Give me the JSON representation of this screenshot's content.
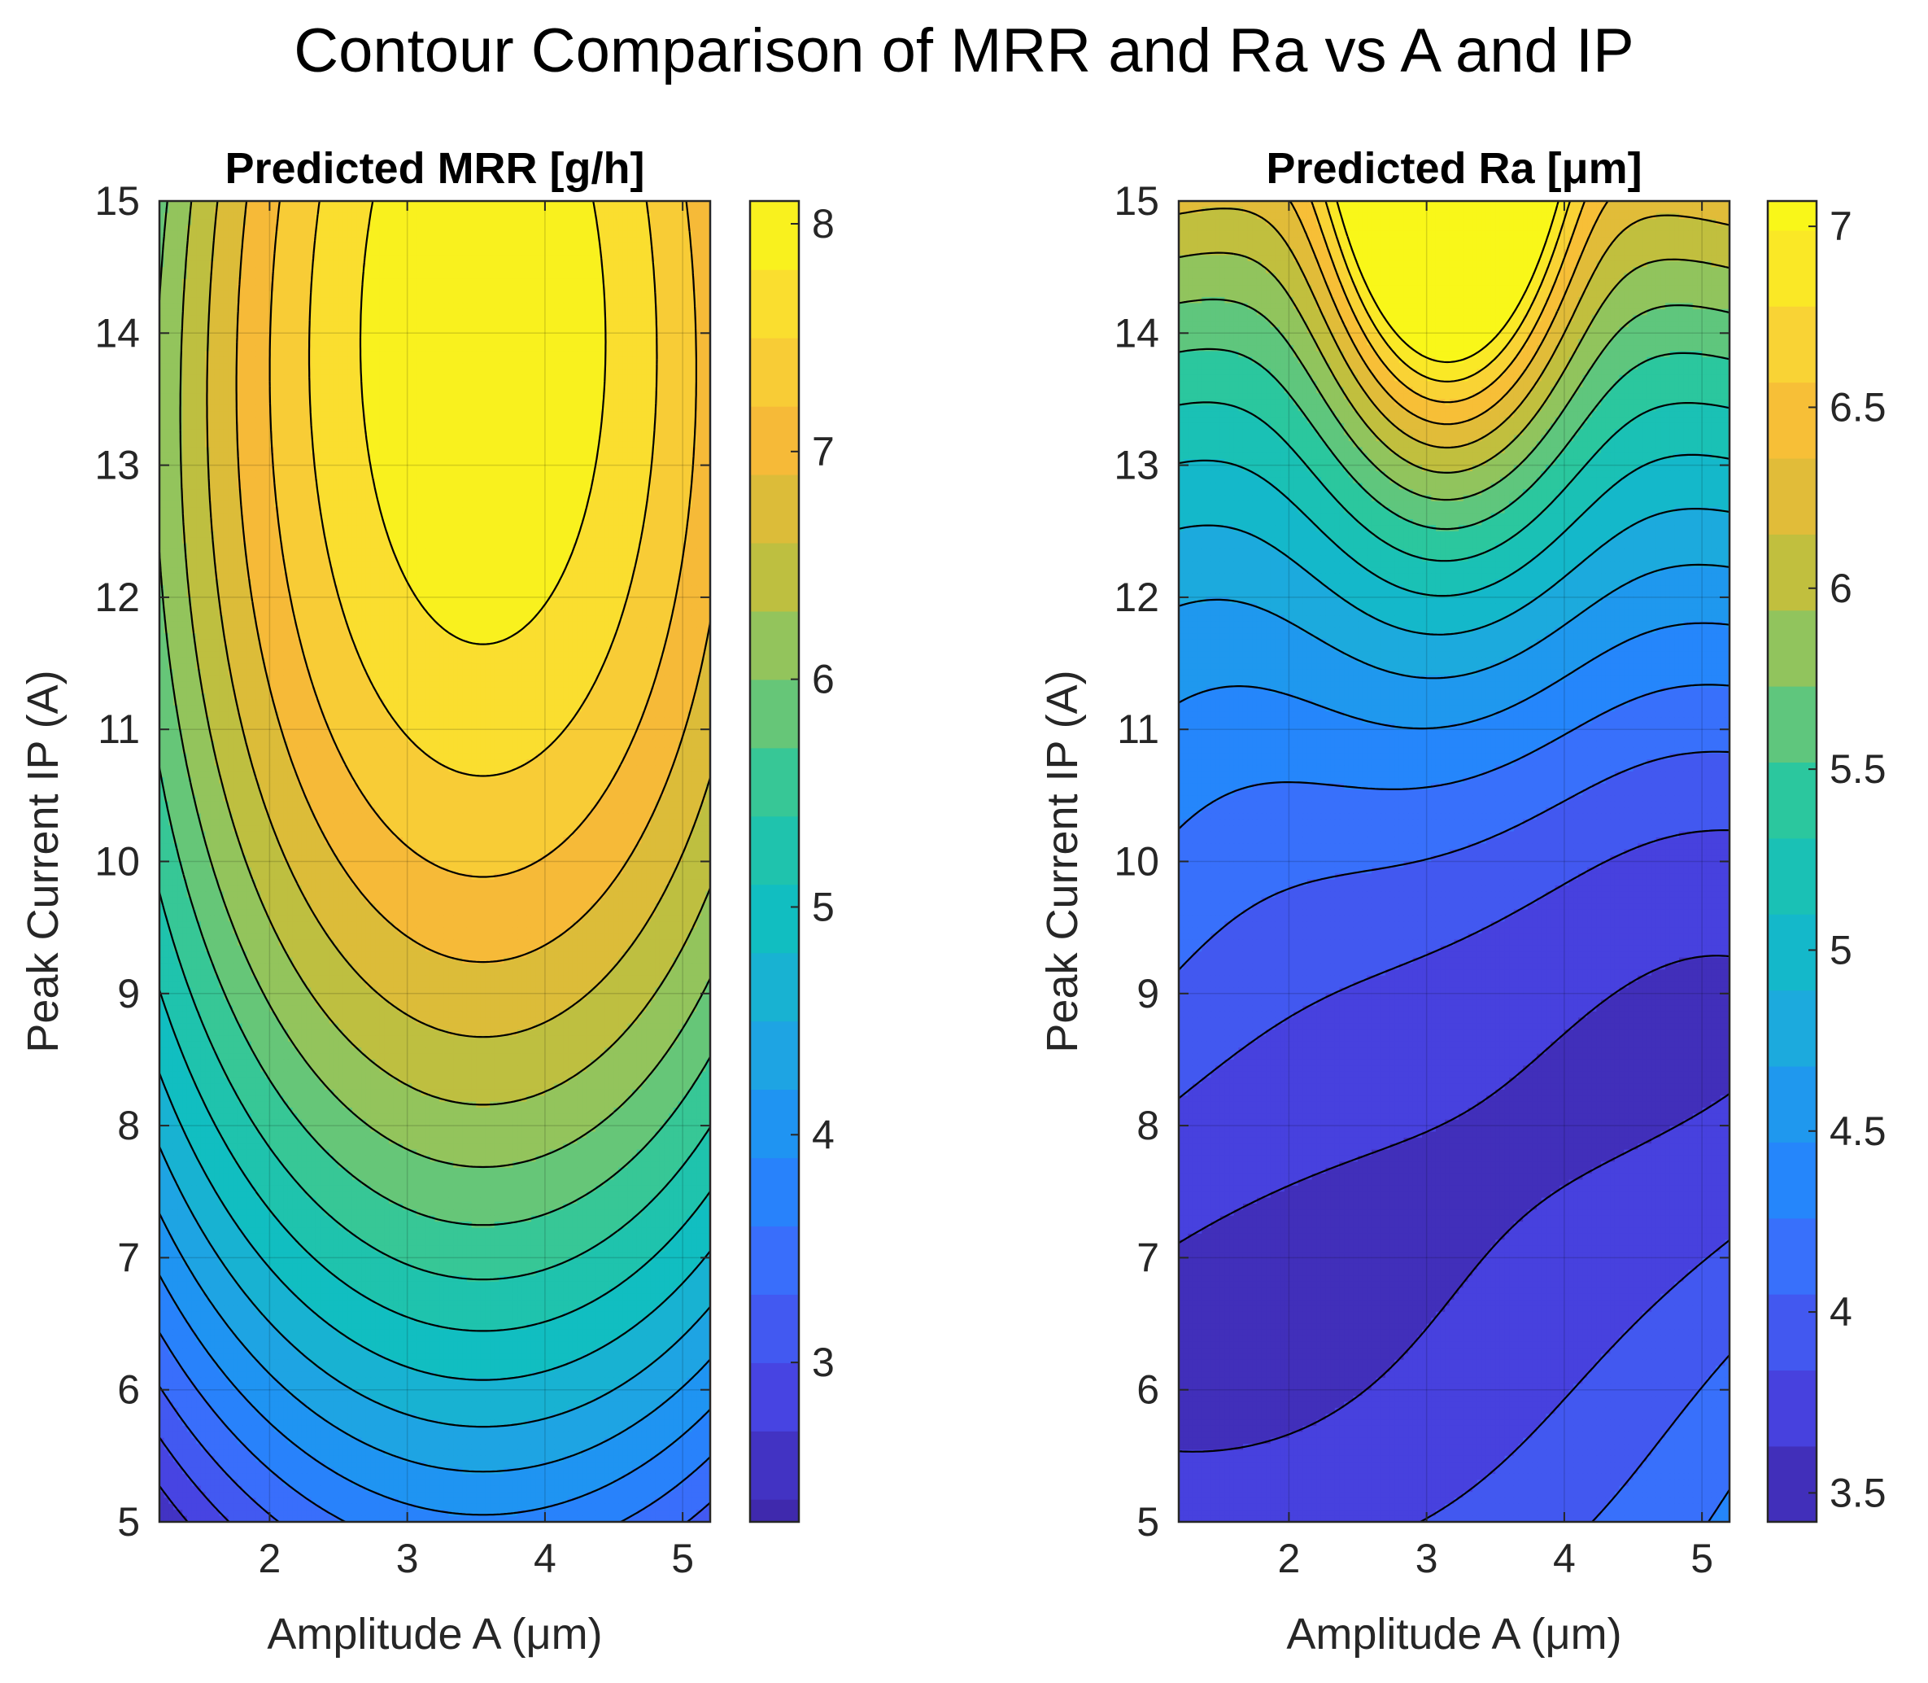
{
  "figure": {
    "title": "Contour Comparison of MRR and Ra vs A and IP"
  },
  "colors": {
    "parula": [
      "#3e26a8",
      "#4742e1",
      "#3f68fb",
      "#208bfb",
      "#1ea7e0",
      "#10bec2",
      "#2ac79f",
      "#7cc66a",
      "#c8be3a",
      "#f6ba38",
      "#fad934",
      "#f9fb15"
    ],
    "axis": "#262626",
    "contour_line": "#000000"
  },
  "chart_data": [
    {
      "type": "contourf",
      "title": "Predicted MRR [g/h]",
      "xlabel": "Amplitude A (μm)",
      "ylabel": "Peak Current IP (A)",
      "xlim": [
        1.2,
        5.2
      ],
      "ylim": [
        5,
        15
      ],
      "xticks": [
        2,
        3,
        4,
        5
      ],
      "yticks": [
        5,
        6,
        7,
        8,
        9,
        10,
        11,
        12,
        13,
        14,
        15
      ],
      "xtick_labels": [
        "2",
        "3",
        "4",
        "5"
      ],
      "ytick_labels": [
        "5",
        "6",
        "7",
        "8",
        "9",
        "10",
        "11",
        "12",
        "13",
        "14",
        "15"
      ],
      "surface": {
        "form": "z = c0 + c1*(A - a0)^2 + c2*(IP - p0) + c3*(IP - p0)^2 + c4*(A - a0)^2*(IP - p0)",
        "a0": 3.55,
        "p0": 5,
        "c0": 3.85,
        "c1": -0.25,
        "c2": 0.94,
        "c3": -0.052,
        "c4": -0.014
      },
      "colorbar": {
        "clim": [
          2.3,
          8.1
        ],
        "ticks": [
          3,
          4,
          5,
          6,
          7,
          8
        ],
        "tick_labels": [
          "3",
          "4",
          "5",
          "6",
          "7",
          "8"
        ]
      },
      "contour_levels": [
        2.4,
        2.7,
        3.0,
        3.3,
        3.6,
        3.9,
        4.2,
        4.5,
        4.8,
        5.1,
        5.4,
        5.7,
        6.0,
        6.3,
        6.6,
        6.9,
        7.2,
        7.5,
        7.8
      ]
    },
    {
      "type": "contourf",
      "title": "Predicted Ra [μm]",
      "xlabel": "Amplitude A (μm)",
      "ylabel": "Peak Current IP (A)",
      "xlim": [
        1.2,
        5.2
      ],
      "ylim": [
        5,
        15
      ],
      "xticks": [
        2,
        3,
        4,
        5
      ],
      "yticks": [
        5,
        6,
        7,
        8,
        9,
        10,
        11,
        12,
        13,
        14,
        15
      ],
      "xtick_labels": [
        "2",
        "3",
        "4",
        "5"
      ],
      "ytick_labels": [
        "5",
        "6",
        "7",
        "8",
        "9",
        "10",
        "11",
        "12",
        "13",
        "14",
        "15"
      ],
      "surface": {
        "form": "z = base + 0.04*(A-3.0)^2 + 0.045*(IP-7.5)^2 - 0.10*(A-3.0)*(IP-7.5)*exp(-((IP-7.5)/3)^2) + 3.22*exp(-(A-3.15)^2/(2*(0.5+0.09*(15-IP))^2)) * exp(-(15-IP)/1.85)",
        "base": 3.55
      },
      "colorbar": {
        "clim": [
          3.42,
          7.07
        ],
        "ticks": [
          3.5,
          4,
          4.5,
          5,
          5.5,
          6,
          6.5,
          7
        ],
        "tick_labels": [
          "3.5",
          "4",
          "4.5",
          "5",
          "5.5",
          "6",
          "6.5",
          "7"
        ]
      },
      "contour_levels": [
        3.63,
        3.84,
        4.05,
        4.26,
        4.47,
        4.68,
        4.89,
        5.1,
        5.31,
        5.52,
        5.73,
        5.94,
        6.15,
        6.36,
        6.57,
        6.78,
        6.99
      ]
    }
  ]
}
